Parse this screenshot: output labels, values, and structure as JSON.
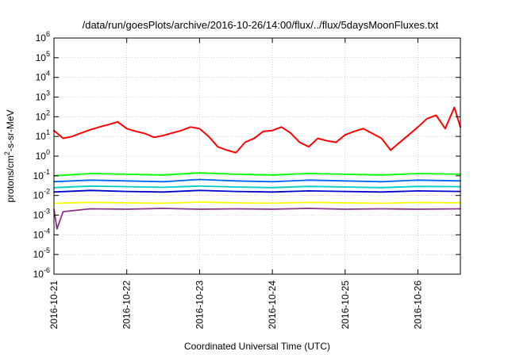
{
  "chart_data": {
    "type": "line",
    "title": "/data/run/goesPlots/archive/2016-10-26/14:00/flux/../flux/5daysMoonFluxes.txt",
    "xlabel": "Coordinated Universal Time (UTC)",
    "ylabel": {
      "prefix": "protons/cm",
      "sup": "2",
      "suffix": "-s-sr-MeV"
    },
    "y_scale": "log",
    "ylim": [
      1e-06,
      1000000.0
    ],
    "y_ticks": [
      {
        "value": 1e-06,
        "base": "10",
        "exp": "-6"
      },
      {
        "value": 1e-05,
        "base": "10",
        "exp": "-5"
      },
      {
        "value": 0.0001,
        "base": "10",
        "exp": "-4"
      },
      {
        "value": 0.001,
        "base": "10",
        "exp": "-3"
      },
      {
        "value": 0.01,
        "base": "10",
        "exp": "-2"
      },
      {
        "value": 0.1,
        "base": "10",
        "exp": "-1"
      },
      {
        "value": 1,
        "base": "10",
        "exp": "0"
      },
      {
        "value": 10,
        "base": "10",
        "exp": "1"
      },
      {
        "value": 100,
        "base": "10",
        "exp": "2"
      },
      {
        "value": 1000,
        "base": "10",
        "exp": "3"
      },
      {
        "value": 10000,
        "base": "10",
        "exp": "4"
      },
      {
        "value": 100000,
        "base": "10",
        "exp": "5"
      },
      {
        "value": 1000000,
        "base": "10",
        "exp": "6"
      }
    ],
    "xlim": [
      "2016-10-21T00:00",
      "2016-10-26T14:00"
    ],
    "x_tick_labels": [
      "2016-10-21",
      "2016-10-22",
      "2016-10-23",
      "2016-10-24",
      "2016-10-25",
      "2016-10-26"
    ],
    "grid": true,
    "legend": "none",
    "series": [
      {
        "color": "#ff0000",
        "x": [
          "2016-10-21T00:00",
          "2016-10-21T03:00",
          "2016-10-21T06:00",
          "2016-10-21T09:00",
          "2016-10-21T12:00",
          "2016-10-21T15:00",
          "2016-10-21T18:00",
          "2016-10-21T21:00",
          "2016-10-22T00:00",
          "2016-10-22T03:00",
          "2016-10-22T06:00",
          "2016-10-22T09:00",
          "2016-10-22T12:00",
          "2016-10-22T15:00",
          "2016-10-22T18:00",
          "2016-10-22T21:00",
          "2016-10-23T00:00",
          "2016-10-23T03:00",
          "2016-10-23T06:00",
          "2016-10-23T09:00",
          "2016-10-23T12:00",
          "2016-10-23T15:00",
          "2016-10-23T18:00",
          "2016-10-23T21:00",
          "2016-10-24T00:00",
          "2016-10-24T03:00",
          "2016-10-24T06:00",
          "2016-10-24T09:00",
          "2016-10-24T12:00",
          "2016-10-24T15:00",
          "2016-10-24T18:00",
          "2016-10-24T21:00",
          "2016-10-25T00:00",
          "2016-10-25T03:00",
          "2016-10-25T06:00",
          "2016-10-25T09:00",
          "2016-10-25T12:00",
          "2016-10-25T15:00",
          "2016-10-25T18:00",
          "2016-10-25T21:00",
          "2016-10-26T00:00",
          "2016-10-26T03:00",
          "2016-10-26T06:00",
          "2016-10-26T09:00",
          "2016-10-26T12:00",
          "2016-10-26T14:00"
        ],
        "values": [
          20,
          8,
          10,
          15,
          22,
          30,
          40,
          55,
          25,
          18,
          14,
          9,
          11,
          15,
          20,
          30,
          25,
          10,
          3,
          2,
          1.5,
          5,
          8,
          18,
          20,
          30,
          15,
          5,
          3,
          8,
          6,
          5,
          12,
          18,
          25,
          14,
          8,
          2,
          5,
          12,
          30,
          80,
          120,
          25,
          300,
          30
        ]
      },
      {
        "color": "#00ff00",
        "x": [
          "2016-10-21T00:00",
          "2016-10-21T12:00",
          "2016-10-22T00:00",
          "2016-10-22T12:00",
          "2016-10-23T00:00",
          "2016-10-23T12:00",
          "2016-10-24T00:00",
          "2016-10-24T12:00",
          "2016-10-25T00:00",
          "2016-10-25T12:00",
          "2016-10-26T00:00",
          "2016-10-26T14:00"
        ],
        "values": [
          0.1,
          0.13,
          0.12,
          0.11,
          0.14,
          0.12,
          0.11,
          0.13,
          0.12,
          0.11,
          0.13,
          0.12
        ]
      },
      {
        "color": "#0066ff",
        "x": [
          "2016-10-21T00:00",
          "2016-10-21T12:00",
          "2016-10-22T00:00",
          "2016-10-22T12:00",
          "2016-10-23T00:00",
          "2016-10-23T12:00",
          "2016-10-24T00:00",
          "2016-10-24T12:00",
          "2016-10-25T00:00",
          "2016-10-25T12:00",
          "2016-10-26T00:00",
          "2016-10-26T14:00"
        ],
        "values": [
          0.05,
          0.06,
          0.055,
          0.05,
          0.065,
          0.055,
          0.05,
          0.06,
          0.055,
          0.05,
          0.06,
          0.055
        ]
      },
      {
        "color": "#00cccc",
        "x": [
          "2016-10-21T00:00",
          "2016-10-21T12:00",
          "2016-10-22T00:00",
          "2016-10-22T12:00",
          "2016-10-23T00:00",
          "2016-10-23T12:00",
          "2016-10-24T00:00",
          "2016-10-24T12:00",
          "2016-10-25T00:00",
          "2016-10-25T12:00",
          "2016-10-26T00:00",
          "2016-10-26T14:00"
        ],
        "values": [
          0.025,
          0.03,
          0.028,
          0.026,
          0.03,
          0.027,
          0.025,
          0.029,
          0.027,
          0.025,
          0.029,
          0.028
        ]
      },
      {
        "color": "#0000cc",
        "x": [
          "2016-10-21T00:00",
          "2016-10-21T12:00",
          "2016-10-22T00:00",
          "2016-10-22T12:00",
          "2016-10-23T00:00",
          "2016-10-23T12:00",
          "2016-10-24T00:00",
          "2016-10-24T12:00",
          "2016-10-25T00:00",
          "2016-10-25T12:00",
          "2016-10-26T00:00",
          "2016-10-26T14:00"
        ],
        "values": [
          0.015,
          0.018,
          0.016,
          0.015,
          0.018,
          0.016,
          0.015,
          0.017,
          0.016,
          0.015,
          0.017,
          0.016
        ]
      },
      {
        "color": "#ffff00",
        "x": [
          "2016-10-21T00:00",
          "2016-10-21T12:00",
          "2016-10-22T00:00",
          "2016-10-22T12:00",
          "2016-10-23T00:00",
          "2016-10-23T12:00",
          "2016-10-24T00:00",
          "2016-10-24T12:00",
          "2016-10-25T00:00",
          "2016-10-25T12:00",
          "2016-10-26T00:00",
          "2016-10-26T14:00"
        ],
        "values": [
          0.004,
          0.0045,
          0.0042,
          0.004,
          0.0046,
          0.0042,
          0.004,
          0.0045,
          0.0042,
          0.004,
          0.0044,
          0.0042
        ]
      },
      {
        "color": "#883388",
        "x": [
          "2016-10-21T00:00",
          "2016-10-21T01:00",
          "2016-10-21T03:00",
          "2016-10-21T12:00",
          "2016-10-22T00:00",
          "2016-10-22T12:00",
          "2016-10-23T00:00",
          "2016-10-23T12:00",
          "2016-10-24T00:00",
          "2016-10-24T12:00",
          "2016-10-25T00:00",
          "2016-10-25T12:00",
          "2016-10-26T00:00",
          "2016-10-26T14:00"
        ],
        "values": [
          0.002,
          0.0002,
          0.0015,
          0.0021,
          0.002,
          0.0022,
          0.002,
          0.0021,
          0.002,
          0.0022,
          0.002,
          0.0021,
          0.002,
          0.0021
        ]
      }
    ]
  }
}
